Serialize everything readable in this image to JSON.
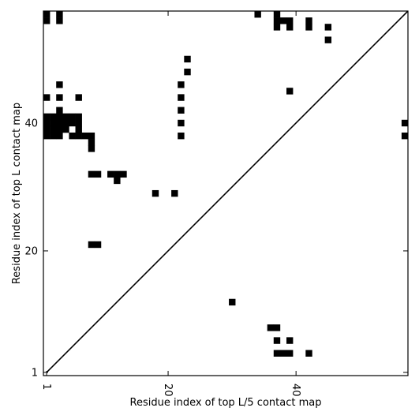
{
  "chart_data": {
    "type": "heatmap",
    "xlabel": "Residue index of top L/5 contact map",
    "ylabel": "Residue index of top L contact map",
    "xlim": [
      0.5,
      57.5
    ],
    "ylim": [
      0.5,
      57.5
    ],
    "xticks": [
      {
        "value": 1,
        "label": "1"
      },
      {
        "value": 20,
        "label": "20"
      },
      {
        "value": 40,
        "label": "40"
      }
    ],
    "yticks": [
      {
        "value": 1,
        "label": "1"
      },
      {
        "value": 20,
        "label": "20"
      },
      {
        "value": 40,
        "label": "40"
      }
    ],
    "diagonal": true,
    "cell_color": "#000000",
    "background": "#ffffff",
    "upper_cells": [
      [
        1,
        57
      ],
      [
        1,
        56
      ],
      [
        3,
        57
      ],
      [
        3,
        56
      ],
      [
        34,
        57
      ],
      [
        37,
        57
      ],
      [
        37,
        56
      ],
      [
        37,
        55
      ],
      [
        38,
        56
      ],
      [
        39,
        56
      ],
      [
        39,
        55
      ],
      [
        42,
        56
      ],
      [
        42,
        55
      ],
      [
        45,
        55
      ],
      [
        45,
        53
      ],
      [
        23,
        50
      ],
      [
        23,
        48
      ],
      [
        22,
        46
      ],
      [
        22,
        44
      ],
      [
        22,
        42
      ],
      [
        22,
        40
      ],
      [
        22,
        38
      ],
      [
        39,
        45
      ],
      [
        3,
        46
      ],
      [
        1,
        44
      ],
      [
        3,
        44
      ],
      [
        6,
        44
      ],
      [
        3,
        42
      ],
      [
        1,
        41
      ],
      [
        2,
        41
      ],
      [
        3,
        41
      ],
      [
        4,
        41
      ],
      [
        5,
        41
      ],
      [
        6,
        41
      ],
      [
        1,
        40
      ],
      [
        2,
        40
      ],
      [
        3,
        40
      ],
      [
        4,
        40
      ],
      [
        5,
        40
      ],
      [
        6,
        40
      ],
      [
        1,
        39
      ],
      [
        2,
        39
      ],
      [
        3,
        39
      ],
      [
        4,
        39
      ],
      [
        6,
        39
      ],
      [
        1,
        38
      ],
      [
        2,
        38
      ],
      [
        3,
        38
      ],
      [
        5,
        38
      ],
      [
        6,
        38
      ],
      [
        7,
        38
      ],
      [
        8,
        38
      ],
      [
        8,
        37
      ],
      [
        8,
        36
      ],
      [
        8,
        32
      ],
      [
        9,
        32
      ],
      [
        11,
        32
      ],
      [
        12,
        32
      ],
      [
        13,
        32
      ],
      [
        12,
        31
      ],
      [
        18,
        29
      ],
      [
        21,
        29
      ],
      [
        8,
        21
      ],
      [
        9,
        21
      ],
      [
        57,
        40
      ],
      [
        57,
        38
      ]
    ],
    "lower_cells": [
      [
        30,
        12
      ],
      [
        36,
        8
      ],
      [
        37,
        8
      ],
      [
        37,
        6
      ],
      [
        39,
        6
      ],
      [
        37,
        4
      ],
      [
        38,
        4
      ],
      [
        39,
        4
      ],
      [
        42,
        4
      ]
    ]
  }
}
